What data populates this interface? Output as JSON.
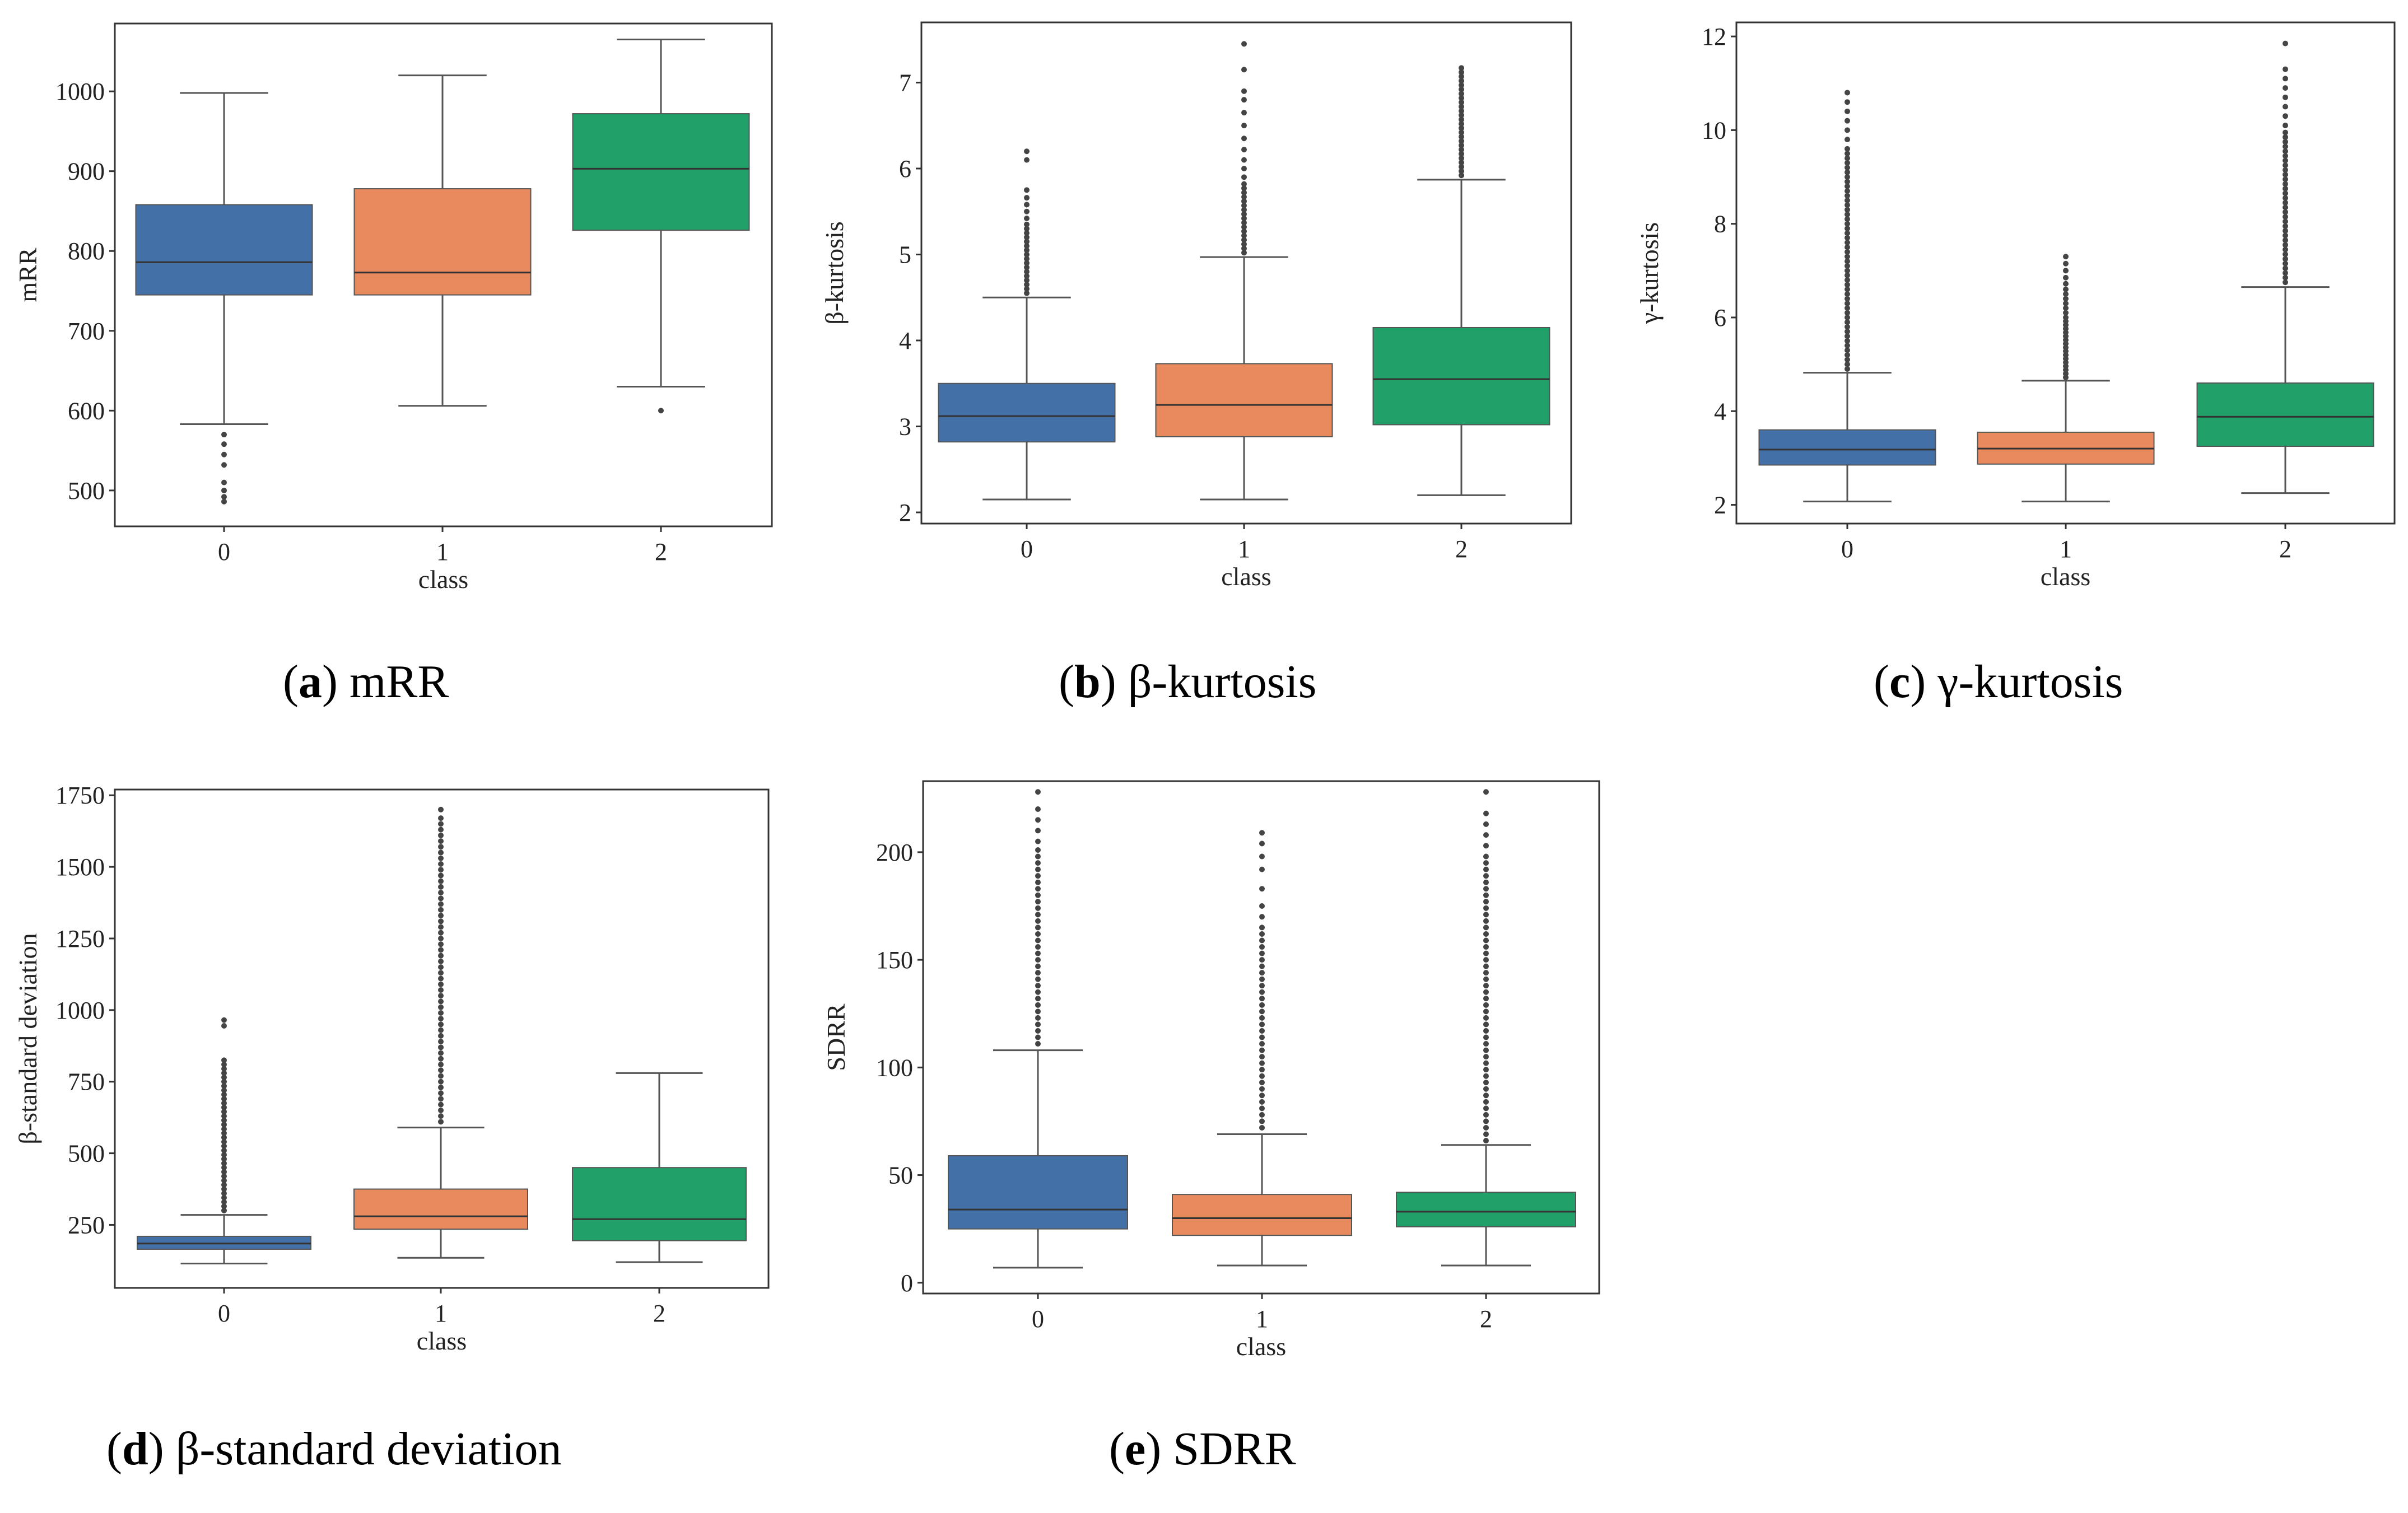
{
  "palette": {
    "0": "#4470a8",
    "1": "#e88a5e",
    "2": "#22a06a"
  },
  "chart_data": [
    {
      "id": "a",
      "type": "box",
      "caption_letter": "a",
      "caption_text": " mRR",
      "xlabel": "class",
      "ylabel": "mRR",
      "ylim": [
        455,
        1085
      ],
      "yticks": [
        "500",
        "600",
        "700",
        "800",
        "900",
        "1000"
      ],
      "categories": [
        "0",
        "1",
        "2"
      ],
      "boxes": [
        {
          "class": "0",
          "whislo": 583,
          "q1": 745,
          "med": 786,
          "q3": 858,
          "whishi": 998,
          "fliers": [
            570,
            558,
            545,
            532,
            510,
            500,
            492,
            486
          ]
        },
        {
          "class": "1",
          "whislo": 606,
          "q1": 745,
          "med": 773,
          "q3": 878,
          "whishi": 1020,
          "fliers": []
        },
        {
          "class": "2",
          "whislo": 630,
          "q1": 826,
          "med": 903,
          "q3": 972,
          "whishi": 1065,
          "fliers": [
            600
          ]
        }
      ]
    },
    {
      "id": "b",
      "type": "box",
      "caption_letter": "b",
      "caption_text": " β-kurtosis",
      "xlabel": "class",
      "ylabel": "β-kurtosis",
      "ylim": [
        1.87,
        7.7
      ],
      "yticks": [
        "2",
        "3",
        "4",
        "5",
        "6",
        "7"
      ],
      "categories": [
        "0",
        "1",
        "2"
      ],
      "boxes": [
        {
          "class": "0",
          "whislo": 2.15,
          "q1": 2.82,
          "med": 3.12,
          "q3": 3.5,
          "whishi": 4.5,
          "fliers": [
            4.55,
            4.6,
            4.65,
            4.7,
            4.75,
            4.8,
            4.85,
            4.9,
            4.95,
            5.0,
            5.05,
            5.1,
            5.15,
            5.2,
            5.25,
            5.3,
            5.35,
            5.42,
            5.5,
            5.58,
            5.66,
            5.75,
            6.1,
            6.2
          ]
        },
        {
          "class": "1",
          "whislo": 2.15,
          "q1": 2.88,
          "med": 3.25,
          "q3": 3.73,
          "whishi": 4.97,
          "fliers": [
            5.02,
            5.07,
            5.12,
            5.17,
            5.22,
            5.27,
            5.32,
            5.37,
            5.42,
            5.47,
            5.52,
            5.57,
            5.62,
            5.67,
            5.72,
            5.77,
            5.82,
            5.9,
            6.0,
            6.1,
            6.22,
            6.35,
            6.5,
            6.65,
            6.8,
            6.9,
            7.15,
            7.45
          ]
        },
        {
          "class": "2",
          "whislo": 2.2,
          "q1": 3.02,
          "med": 3.55,
          "q3": 4.15,
          "whishi": 5.87,
          "fliers": [
            5.92,
            5.97,
            6.02,
            6.07,
            6.12,
            6.17,
            6.22,
            6.27,
            6.32,
            6.37,
            6.42,
            6.47,
            6.52,
            6.57,
            6.62,
            6.67,
            6.72,
            6.77,
            6.82,
            6.87,
            6.92,
            6.97,
            7.02,
            7.07,
            7.12,
            7.17
          ]
        }
      ]
    },
    {
      "id": "c",
      "type": "box",
      "caption_letter": "c",
      "caption_text": " γ-kurtosis",
      "xlabel": "class",
      "ylabel": "γ-kurtosis",
      "ylim": [
        1.6,
        12.3
      ],
      "yticks": [
        "2",
        "4",
        "6",
        "8",
        "10",
        "12"
      ],
      "categories": [
        "0",
        "1",
        "2"
      ],
      "boxes": [
        {
          "class": "0",
          "whislo": 2.07,
          "q1": 2.85,
          "med": 3.18,
          "q3": 3.6,
          "whishi": 4.82,
          "fliers": [
            4.9,
            5.0,
            5.1,
            5.2,
            5.3,
            5.4,
            5.5,
            5.6,
            5.7,
            5.8,
            5.9,
            6.0,
            6.1,
            6.2,
            6.3,
            6.4,
            6.5,
            6.6,
            6.7,
            6.8,
            6.9,
            7.0,
            7.1,
            7.2,
            7.3,
            7.4,
            7.5,
            7.6,
            7.7,
            7.8,
            7.9,
            8.0,
            8.1,
            8.2,
            8.3,
            8.4,
            8.5,
            8.6,
            8.7,
            8.8,
            8.9,
            9.0,
            9.1,
            9.2,
            9.3,
            9.4,
            9.5,
            9.6,
            9.8,
            10.0,
            10.2,
            10.4,
            10.6,
            10.8
          ]
        },
        {
          "class": "1",
          "whislo": 2.07,
          "q1": 2.87,
          "med": 3.2,
          "q3": 3.55,
          "whishi": 4.65,
          "fliers": [
            4.72,
            4.8,
            4.88,
            4.96,
            5.04,
            5.12,
            5.2,
            5.28,
            5.36,
            5.44,
            5.52,
            5.6,
            5.68,
            5.76,
            5.84,
            5.92,
            6.0,
            6.1,
            6.2,
            6.3,
            6.4,
            6.5,
            6.6,
            6.72,
            6.85,
            7.0,
            7.15,
            7.3
          ]
        },
        {
          "class": "2",
          "whislo": 2.25,
          "q1": 3.25,
          "med": 3.88,
          "q3": 4.6,
          "whishi": 6.65,
          "fliers": [
            6.75,
            6.85,
            6.95,
            7.05,
            7.15,
            7.25,
            7.35,
            7.45,
            7.55,
            7.65,
            7.75,
            7.85,
            7.95,
            8.05,
            8.15,
            8.25,
            8.35,
            8.45,
            8.55,
            8.65,
            8.75,
            8.85,
            8.95,
            9.05,
            9.15,
            9.25,
            9.35,
            9.45,
            9.55,
            9.65,
            9.75,
            9.85,
            9.95,
            10.1,
            10.3,
            10.5,
            10.7,
            10.9,
            11.1,
            11.3,
            11.85
          ]
        }
      ]
    },
    {
      "id": "d",
      "type": "box",
      "caption_letter": "d",
      "caption_text": " β-standard deviation",
      "xlabel": "class",
      "ylabel": "β-standard deviation",
      "ylim": [
        30,
        1770
      ],
      "yticks": [
        "250",
        "500",
        "750",
        "1000",
        "1250",
        "1500",
        "1750"
      ],
      "categories": [
        "0",
        "1",
        "2"
      ],
      "boxes": [
        {
          "class": "0",
          "whislo": 115,
          "q1": 165,
          "med": 185,
          "q3": 210,
          "whishi": 285,
          "fliers": [
            300,
            315,
            330,
            345,
            360,
            375,
            390,
            405,
            420,
            435,
            450,
            465,
            480,
            495,
            510,
            525,
            540,
            555,
            570,
            585,
            600,
            615,
            630,
            645,
            660,
            675,
            690,
            705,
            720,
            735,
            750,
            765,
            780,
            795,
            810,
            825,
            945,
            965
          ]
        },
        {
          "class": "1",
          "whislo": 135,
          "q1": 235,
          "med": 280,
          "q3": 375,
          "whishi": 590,
          "fliers": [
            610,
            630,
            650,
            670,
            690,
            710,
            730,
            750,
            770,
            790,
            810,
            830,
            850,
            870,
            890,
            910,
            930,
            950,
            970,
            990,
            1010,
            1030,
            1050,
            1070,
            1090,
            1110,
            1130,
            1150,
            1170,
            1190,
            1210,
            1230,
            1250,
            1270,
            1290,
            1310,
            1330,
            1350,
            1370,
            1390,
            1410,
            1430,
            1450,
            1470,
            1490,
            1510,
            1530,
            1550,
            1570,
            1590,
            1610,
            1630,
            1650,
            1670,
            1700
          ]
        },
        {
          "class": "2",
          "whislo": 120,
          "q1": 195,
          "med": 270,
          "q3": 450,
          "whishi": 780,
          "fliers": []
        }
      ]
    },
    {
      "id": "e",
      "type": "box",
      "caption_letter": "e",
      "caption_text": " SDRR",
      "xlabel": "class",
      "ylabel": "SDRR",
      "ylim": [
        -5,
        233
      ],
      "yticks": [
        "0",
        "50",
        "100",
        "150",
        "200"
      ],
      "categories": [
        "0",
        "1",
        "2"
      ],
      "boxes": [
        {
          "class": "0",
          "whislo": 7,
          "q1": 25,
          "med": 34,
          "q3": 59,
          "whishi": 108,
          "fliers": [
            111,
            114,
            117,
            120,
            123,
            126,
            129,
            132,
            135,
            138,
            141,
            144,
            147,
            150,
            153,
            156,
            159,
            162,
            165,
            168,
            171,
            174,
            177,
            180,
            183,
            186,
            189,
            192,
            195,
            198,
            201,
            205,
            210,
            215,
            220,
            228
          ]
        },
        {
          "class": "1",
          "whislo": 8,
          "q1": 22,
          "med": 30,
          "q3": 41,
          "whishi": 69,
          "fliers": [
            72,
            75,
            78,
            81,
            84,
            87,
            90,
            93,
            96,
            99,
            102,
            105,
            108,
            111,
            114,
            117,
            120,
            123,
            126,
            129,
            132,
            135,
            138,
            141,
            144,
            147,
            150,
            153,
            156,
            159,
            162,
            165,
            170,
            175,
            183,
            192,
            198,
            204,
            209
          ]
        },
        {
          "class": "2",
          "whislo": 8,
          "q1": 26,
          "med": 33,
          "q3": 42,
          "whishi": 64,
          "fliers": [
            66,
            69,
            72,
            75,
            78,
            81,
            84,
            87,
            90,
            93,
            96,
            99,
            102,
            105,
            108,
            111,
            114,
            117,
            120,
            123,
            126,
            129,
            132,
            135,
            138,
            141,
            144,
            147,
            150,
            153,
            156,
            159,
            162,
            165,
            168,
            171,
            174,
            177,
            180,
            183,
            186,
            189,
            192,
            195,
            198,
            203,
            208,
            213,
            218,
            228
          ]
        }
      ]
    }
  ]
}
